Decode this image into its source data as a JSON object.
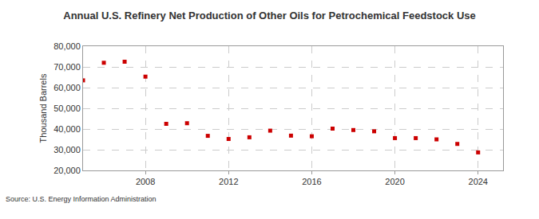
{
  "chart_data": {
    "type": "scatter",
    "title": "Annual U.S. Refinery Net Production of Other Oils for Petrochemical Feedstock Use",
    "y_label": "Thousand Barrels",
    "source": "Source: U.S. Energy Information Administration",
    "x": [
      2005,
      2006,
      2007,
      2008,
      2009,
      2010,
      2011,
      2012,
      2013,
      2014,
      2015,
      2016,
      2017,
      2018,
      2019,
      2020,
      2021,
      2022,
      2023,
      2024
    ],
    "values": [
      63500,
      72000,
      72500,
      65300,
      42500,
      42800,
      36700,
      35200,
      36000,
      39200,
      36800,
      36500,
      40200,
      39500,
      38900,
      35600,
      35600,
      35000,
      32800,
      28700
    ],
    "color": "#cc0000",
    "marker": "square",
    "xlim": [
      2005,
      2025.2
    ],
    "xticks": [
      2008,
      2012,
      2016,
      2020,
      2024
    ],
    "ylim": [
      20000,
      80000
    ],
    "yticks": [
      {
        "value": 20000,
        "label": "20,000"
      },
      {
        "value": 30000,
        "label": "30,000"
      },
      {
        "value": 40000,
        "label": "40,000"
      },
      {
        "value": 50000,
        "label": "50,000"
      },
      {
        "value": 60000,
        "label": "60,000"
      },
      {
        "value": 70000,
        "label": "70,000"
      },
      {
        "value": 80000,
        "label": "80,000"
      }
    ],
    "grid": true
  }
}
